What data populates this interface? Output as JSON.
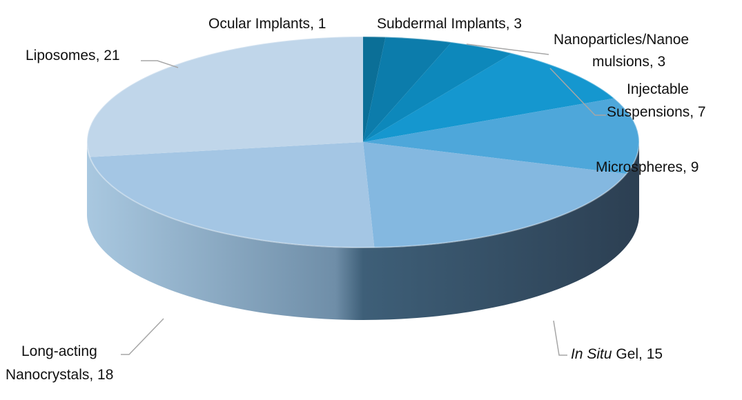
{
  "chart_data": {
    "type": "pie",
    "style": "3d",
    "title": "",
    "legend": "none",
    "slices": [
      {
        "label": "Ocular Implants",
        "value": 1,
        "color": "#0b6f97"
      },
      {
        "label": "Subdermal Implants",
        "value": 3,
        "color": "#0c7cab"
      },
      {
        "label": "Nanoparticles/Nanoemulsions",
        "value": 3,
        "color": "#0d88bb"
      },
      {
        "label": "Injectable Suspensions",
        "value": 7,
        "color": "#1597cf"
      },
      {
        "label": "Microspheres",
        "value": 9,
        "color": "#4ea7da"
      },
      {
        "label": "In Situ Gel",
        "value": 15,
        "color": "#84b8e0"
      },
      {
        "label": "Long-acting Nanocrystals",
        "value": 18,
        "color": "#a4c6e4"
      },
      {
        "label": "Liposomes",
        "value": 21,
        "color": "#c0d6ea"
      }
    ]
  },
  "labels": {
    "ocular": {
      "name": "Ocular Implants",
      "value": ", 1"
    },
    "subdermal": {
      "name": "Subdermal Implants",
      "value": ", 3"
    },
    "nano": {
      "line1": "Nanoparticles/Nanoe",
      "line2": "mulsions, 3"
    },
    "injectable": {
      "line1": "Injectable",
      "line2": "Suspensions, 7"
    },
    "microspheres": {
      "name": "Microspheres",
      "value": ", 9"
    },
    "insitu": {
      "name": "In Situ",
      "value": " Gel, 15"
    },
    "nanocrystals": {
      "line1": "Long-acting",
      "line2": "Nanocrystals, 18"
    },
    "liposomes": {
      "name": "Liposomes",
      "value": ", 21"
    }
  }
}
